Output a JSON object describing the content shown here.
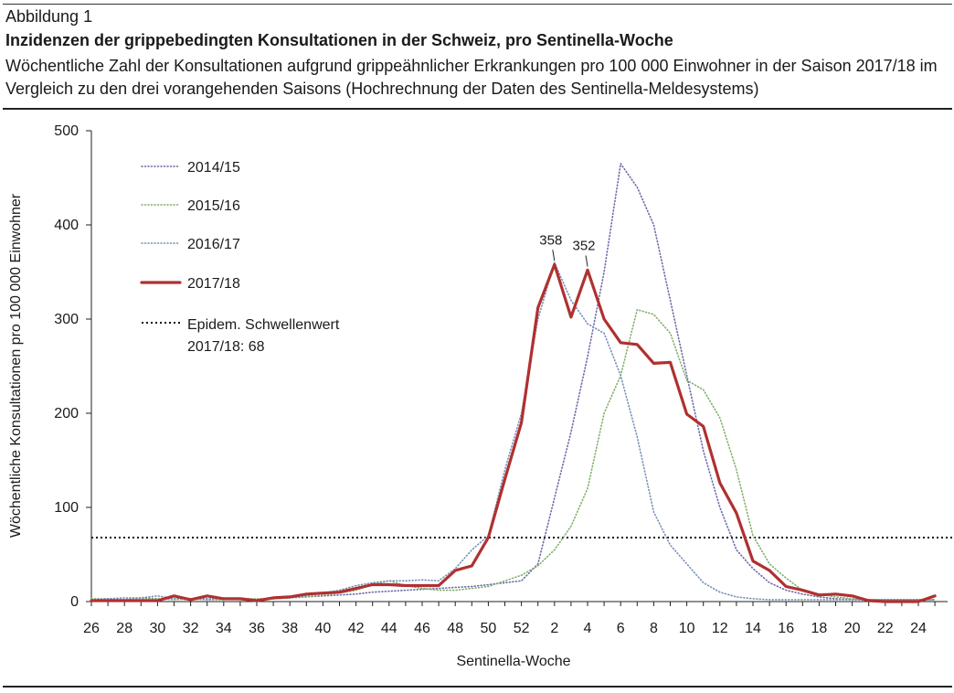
{
  "header": {
    "label": "Abbildung 1",
    "title": "Inzidenzen der grippebedingten Konsultationen in der Schweiz, pro Sentinella-Woche",
    "subtitle": "Wöchentliche Zahl der Konsultationen aufgrund grippeähnlicher Erkrankungen pro 100 000 Einwohner in der Saison 2017/18 im Vergleich zu den drei vorangehenden Saisons (Hochrechnung der Daten des Sentinella-Meldesystems)"
  },
  "chart_data": {
    "type": "line",
    "xlabel": "Sentinella-Woche",
    "ylabel": "Wöchentliche Konsultationen pro 100 000 Einwohner",
    "ylim": [
      0,
      500
    ],
    "yticks": [
      0,
      100,
      200,
      300,
      400,
      500
    ],
    "x": [
      26,
      27,
      28,
      29,
      30,
      31,
      32,
      33,
      34,
      35,
      36,
      37,
      38,
      39,
      40,
      41,
      42,
      43,
      44,
      45,
      46,
      47,
      48,
      49,
      50,
      51,
      52,
      1,
      2,
      3,
      4,
      5,
      6,
      7,
      8,
      9,
      10,
      11,
      12,
      13,
      14,
      15,
      16,
      17,
      18,
      19,
      20,
      21,
      22,
      23,
      24,
      25
    ],
    "xtick_labels": [
      "26",
      "28",
      "30",
      "32",
      "34",
      "36",
      "38",
      "40",
      "42",
      "44",
      "46",
      "48",
      "50",
      "52",
      "2",
      "4",
      "6",
      "8",
      "10",
      "12",
      "14",
      "16",
      "18",
      "20",
      "22",
      "24"
    ],
    "legend_position": "top-left",
    "threshold": {
      "label": "Epidem. Schwellenwert",
      "sublabel": "2017/18: 68",
      "value": 68,
      "color": "#111111"
    },
    "annotations": [
      {
        "text": "358",
        "x": 2,
        "y": 358
      },
      {
        "text": "352",
        "x": 4,
        "y": 352
      }
    ],
    "series": [
      {
        "name": "2014/15",
        "color": "#6a6aa8",
        "style": "dotted",
        "values": [
          2,
          3,
          2,
          4,
          3,
          3,
          2,
          3,
          2,
          3,
          2,
          3,
          4,
          5,
          6,
          7,
          8,
          10,
          11,
          12,
          13,
          14,
          15,
          16,
          18,
          20,
          22,
          40,
          110,
          180,
          260,
          350,
          465,
          440,
          400,
          320,
          240,
          160,
          100,
          55,
          35,
          20,
          12,
          8,
          5,
          3,
          2,
          2,
          2,
          2,
          2,
          2
        ]
      },
      {
        "name": "2015/16",
        "color": "#7fb06a",
        "style": "dotted",
        "values": [
          3,
          3,
          2,
          3,
          3,
          2,
          3,
          2,
          2,
          3,
          3,
          3,
          4,
          5,
          7,
          9,
          12,
          18,
          22,
          17,
          14,
          12,
          12,
          14,
          16,
          22,
          28,
          38,
          55,
          80,
          120,
          200,
          240,
          310,
          305,
          285,
          235,
          225,
          195,
          140,
          70,
          40,
          25,
          12,
          8,
          5,
          3,
          2,
          2,
          2,
          2,
          2
        ]
      },
      {
        "name": "2016/17",
        "color": "#7890b8",
        "style": "dotted",
        "values": [
          2,
          3,
          4,
          4,
          6,
          3,
          3,
          2,
          3,
          2,
          2,
          3,
          4,
          6,
          9,
          12,
          17,
          20,
          22,
          22,
          23,
          22,
          35,
          55,
          70,
          140,
          200,
          300,
          360,
          320,
          295,
          285,
          240,
          175,
          95,
          60,
          40,
          20,
          10,
          5,
          3,
          2,
          2,
          2,
          2,
          2,
          2,
          2,
          2,
          2,
          2,
          2
        ]
      },
      {
        "name": "2017/18",
        "color": "#b03030",
        "style": "solid",
        "values": [
          1,
          1,
          1,
          1,
          1,
          6,
          2,
          6,
          3,
          3,
          1,
          4,
          5,
          8,
          9,
          10,
          14,
          18,
          18,
          17,
          17,
          17,
          33,
          38,
          68,
          130,
          190,
          312,
          358,
          302,
          352,
          300,
          275,
          273,
          253,
          254,
          199,
          186,
          126,
          94,
          43,
          33,
          16,
          12,
          7,
          8,
          6,
          1,
          0,
          0,
          0,
          6
        ]
      }
    ]
  }
}
